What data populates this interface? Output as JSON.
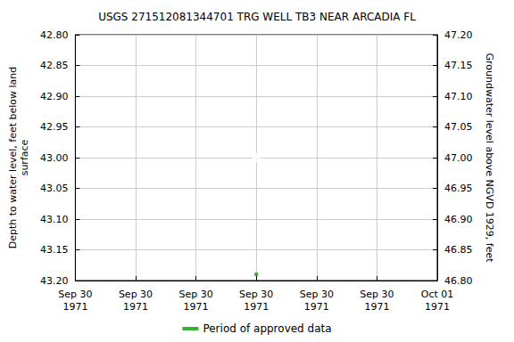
{
  "chart_data": {
    "type": "scatter",
    "title": "USGS 271512081344701 TRG WELL TB3 NEAR ARCADIA FL",
    "y_label": "Depth to water level, feet below land\nsurface",
    "y2_label": "Groundwater level above NGVD 1929, feet",
    "categories": [
      "Sep 30\n1971",
      "Sep 30\n1971",
      "Sep 30\n1971",
      "Sep 30\n1971",
      "Sep 30\n1971",
      "Sep 30\n1971",
      "Oct 01\n1971"
    ],
    "series": [
      {
        "values": [
          null,
          null,
          null,
          43.0,
          null,
          null,
          null
        ],
        "color": "#0000ff",
        "marker": "emptyCircle"
      },
      {
        "name": "Period of approved data",
        "values": [
          null,
          null,
          null,
          43.19,
          null,
          null,
          null
        ],
        "color": "#00a000",
        "marker": "rect"
      }
    ],
    "ylim": [
      43.2,
      42.8
    ],
    "yticks": [
      {
        "value": 42.8,
        "label": "42.80"
      },
      {
        "value": 42.85,
        "label": "42.85"
      },
      {
        "value": 42.9,
        "label": "42.90"
      },
      {
        "value": 42.95,
        "label": "42.95"
      },
      {
        "value": 43.0,
        "label": "43.00"
      },
      {
        "value": 43.05,
        "label": "43.05"
      },
      {
        "value": 43.1,
        "label": "43.10"
      },
      {
        "value": 43.15,
        "label": "43.15"
      },
      {
        "value": 43.2,
        "label": "43.20"
      }
    ],
    "y2lim": [
      46.8,
      47.2
    ],
    "y2ticks": [
      {
        "value": 46.8,
        "label": "46.80"
      },
      {
        "value": 46.85,
        "label": "46.85"
      },
      {
        "value": 46.9,
        "label": "46.90"
      },
      {
        "value": 46.95,
        "label": "46.95"
      },
      {
        "value": 47.0,
        "label": "47.00"
      },
      {
        "value": 47.05,
        "label": "47.05"
      },
      {
        "value": 47.1,
        "label": "47.10"
      },
      {
        "value": 47.15,
        "label": "47.15"
      },
      {
        "value": 47.2,
        "label": "47.20"
      }
    ],
    "grid": true,
    "legend": "bottom"
  }
}
